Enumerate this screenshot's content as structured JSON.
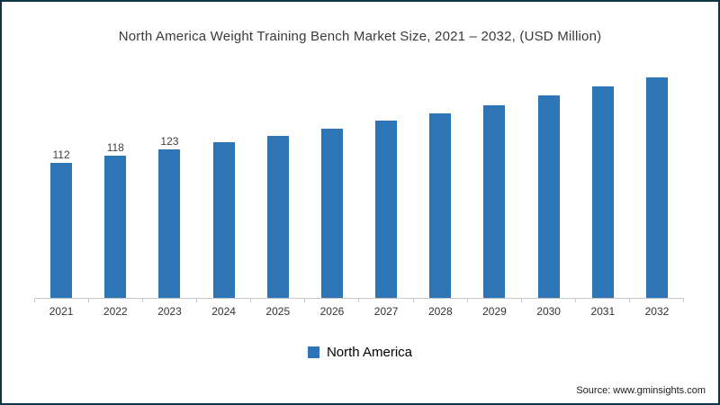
{
  "frame": {
    "border_color": "#0e3547",
    "background": "#ffffff"
  },
  "chart": {
    "title": "North America Weight Training Bench Market Size, 2021 – 2032, (USD Million)",
    "legend": {
      "label": "North America",
      "marker_color": "#2e75b6"
    },
    "source": "Source: www.gminsights.com"
  },
  "chart_data": {
    "type": "bar",
    "title": "North America Weight Training Bench Market Size, 2021 – 2032, (USD Million)",
    "categories": [
      "2021",
      "2022",
      "2023",
      "2024",
      "2025",
      "2026",
      "2027",
      "2028",
      "2029",
      "2030",
      "2031",
      "2032"
    ],
    "series": [
      {
        "name": "North America",
        "values": [
          112,
          118,
          123,
          129,
          134,
          140,
          147,
          153,
          160,
          168,
          175,
          183
        ]
      }
    ],
    "data_labels": [
      "112",
      "118",
      "123",
      "",
      "",
      "",
      "",
      "",
      "",
      "",
      "",
      ""
    ],
    "bar_color": "#2e75b6",
    "xlabel": "",
    "ylabel": "",
    "ylim": [
      0,
      200
    ],
    "grid": false,
    "y_axis_visible": false,
    "legend_position": "bottom"
  }
}
